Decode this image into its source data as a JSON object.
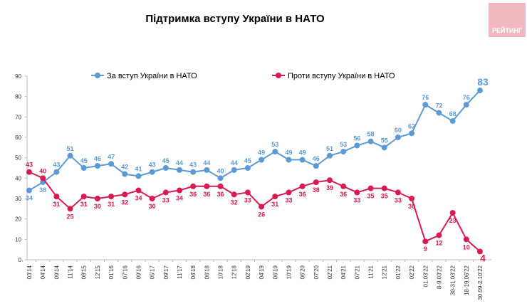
{
  "logo_text": "РЕЙТИНГ",
  "chart_data": {
    "type": "line",
    "title": "Підтримка вступу України в НАТО",
    "xlabel": "",
    "ylabel": "",
    "ylim": [
      0,
      90
    ],
    "yticks": [
      0,
      10,
      20,
      30,
      40,
      50,
      60,
      70,
      80,
      90
    ],
    "grid": false,
    "legend": "top",
    "categories": [
      "03'14",
      "04'14",
      "09'14",
      "11'14",
      "08'15",
      "12'15",
      "01'16",
      "07'16",
      "09'16",
      "05'17",
      "09'17",
      "11'17",
      "04'18",
      "06'18",
      "10'18",
      "12'18",
      "02'19",
      "04'19",
      "06'19",
      "10'19",
      "06'20",
      "07'20",
      "02'21",
      "04'21",
      "07'21",
      "11'21",
      "12'21",
      "01'22",
      "02'22",
      "01.03'22",
      "8-9.03'22",
      "30-31.03'22",
      "18-19.06'22",
      "30.09-2.10'22"
    ],
    "series": [
      {
        "name": "За вступ України в НАТО",
        "color": "#5b9bd5",
        "values": [
          34,
          38,
          43,
          51,
          45,
          46,
          47,
          42,
          41,
          43,
          45,
          44,
          43,
          44,
          40,
          44,
          45,
          49,
          53,
          49,
          49,
          46,
          51,
          53,
          56,
          58,
          55,
          60,
          62,
          76,
          72,
          68,
          76,
          83
        ]
      },
      {
        "name": "Проти вступу України в НАТО",
        "color": "#d81b50",
        "values": [
          43,
          40,
          31,
          25,
          31,
          30,
          31,
          32,
          34,
          30,
          33,
          34,
          36,
          36,
          36,
          32,
          33,
          26,
          31,
          33,
          36,
          38,
          39,
          36,
          33,
          35,
          35,
          33,
          30,
          9,
          12,
          23,
          10,
          4
        ]
      }
    ]
  }
}
